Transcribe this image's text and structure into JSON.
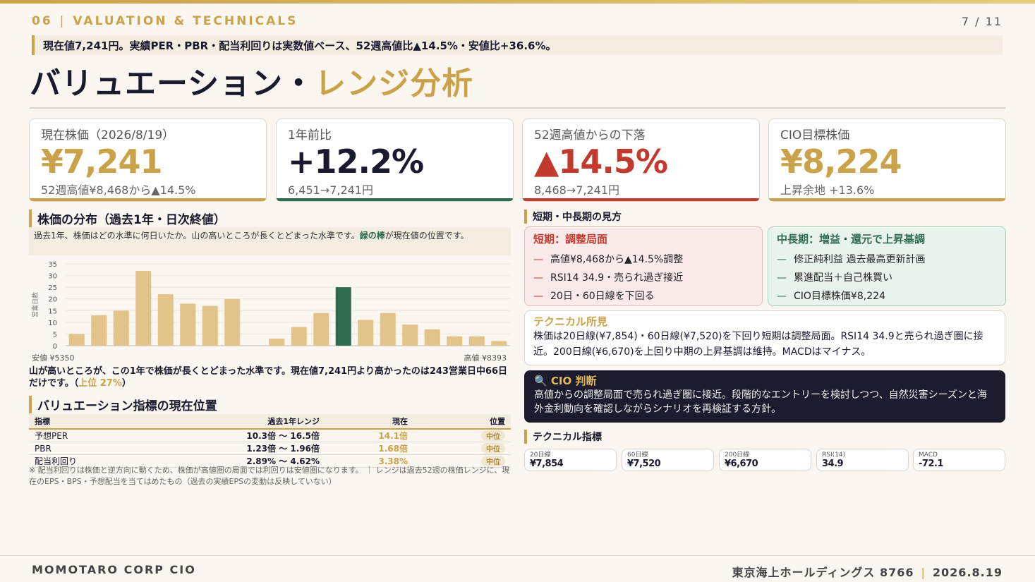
{
  "header": {
    "section_no": "06",
    "section_title": "VALUATION & TECHNICALS",
    "page": "7 / 11"
  },
  "lead": "現在値7,241円。実績PER・PBR・配当利回りは実数値ベース、52週高値比▲14.5%・安値比+36.6%。",
  "title": {
    "main": "バリュエーション・",
    "accent": "レンジ分析"
  },
  "kpis": [
    {
      "label": "現在株価（2026/8/19）",
      "value": "¥7,241",
      "sub": "52週高値¥8,468から▲14.5%",
      "color": "#c9a24a"
    },
    {
      "label": "1年前比",
      "value": "+12.2%",
      "sub": "6,451→7,241円",
      "color": "#2f6b4f"
    },
    {
      "label": "52週高値からの下落",
      "value": "▲14.5%",
      "sub": "8,468→7,241円",
      "color": "#c23a2e"
    },
    {
      "label": "CIO目標株価",
      "value": "¥8,224",
      "sub": "上昇余地 +13.6%",
      "color": "#c9a24a"
    }
  ],
  "dist": {
    "heading": "株価の分布（過去1年・日次終値）",
    "note_pre": "過去1年、株価はどの水準に何日いたか。山の高いところが長くとどまった水準です。",
    "note_green": "緑の棒",
    "note_post": "が現在値の位置です。",
    "low_label": "安値 ¥5350",
    "high_label": "高値 ¥8393",
    "summary_pre": "山が高いところが、この1年で株価が長くとどまった水準です。現在値7,241円より高かったのは243営業日中66日だけです。（",
    "summary_accent": "上位 27%",
    "summary_post": "）"
  },
  "chart_data": {
    "type": "bar",
    "ylabel": "営業日数",
    "ylim": [
      0,
      35
    ],
    "yticks": [
      0,
      5,
      10,
      15,
      20,
      25,
      30,
      35
    ],
    "values": [
      5,
      13,
      15,
      32,
      22,
      18,
      17,
      20,
      0,
      3,
      8,
      14,
      25,
      11,
      14,
      9,
      7,
      4,
      4,
      2
    ],
    "highlight_index": 12,
    "bar_color": "#e2c48a",
    "highlight_color": "#2f6b4f",
    "grid": true
  },
  "valuation": {
    "heading": "バリュエーション指標の現在位置",
    "columns": [
      "指標",
      "過去1年レンジ",
      "現在",
      "位置"
    ],
    "rows": [
      [
        "予想PER",
        "10.3倍 〜 16.5倍",
        "14.1倍",
        "中位"
      ],
      [
        "PBR",
        "1.23倍 〜 1.96倍",
        "1.68倍",
        "中位"
      ],
      [
        "配当利回り",
        "2.89% 〜 4.62%",
        "3.38%",
        "中位"
      ]
    ],
    "footnote": "※ 配当利回りは株価と逆方向に動くため、株価が高値圏の局面では利回りは安値圏になります。 ｜ レンジは過去52週の株価レンジに、現在のEPS・BPS・予想配当を当てはめたもの（過去の実績EPSの変動は反映していない）"
  },
  "views": {
    "heading": "短期・中長期の見方",
    "short": {
      "title": "短期：調整局面",
      "items": [
        "高値¥8,468から▲14.5%調整",
        "RSI14 34.9・売られ過ぎ接近",
        "20日・60日線を下回る"
      ]
    },
    "long": {
      "title": "中長期：増益・還元で上昇基調",
      "items": [
        "修正純利益 過去最高更新計画",
        "累進配当＋自己株買い",
        "CIO目標株価¥8,224"
      ]
    },
    "dash": "—"
  },
  "technical": {
    "title": "テクニカル所見",
    "body": "株価は20日線(¥7,854)・60日線(¥7,520)を下回り短期は調整局面。RSI14 34.9と売られ過ぎ圏に接近。200日線(¥6,670)を上回り中期の上昇基調は維持。MACDはマイナス。"
  },
  "cio": {
    "icon": "🔍",
    "title": "CIO 判断",
    "body": "高値からの調整局面で売られ過ぎ圏に接近。段階的なエントリーを検討しつつ、自然災害シーズンと海外金利動向を確認しながらシナリオを再検証する方針。"
  },
  "indicators": {
    "heading": "テクニカル指標",
    "items": [
      {
        "label": "20日線",
        "value": "¥7,854"
      },
      {
        "label": "60日線",
        "value": "¥7,520"
      },
      {
        "label": "200日線",
        "value": "¥6,670"
      },
      {
        "label": "RSI(14)",
        "value": "34.9"
      },
      {
        "label": "MACD",
        "value": "-72.1"
      }
    ]
  },
  "footer": {
    "left": "MOMOTARO CORP CIO",
    "company": "東京海上ホールディングス 8766",
    "date": "2026.8.19"
  }
}
